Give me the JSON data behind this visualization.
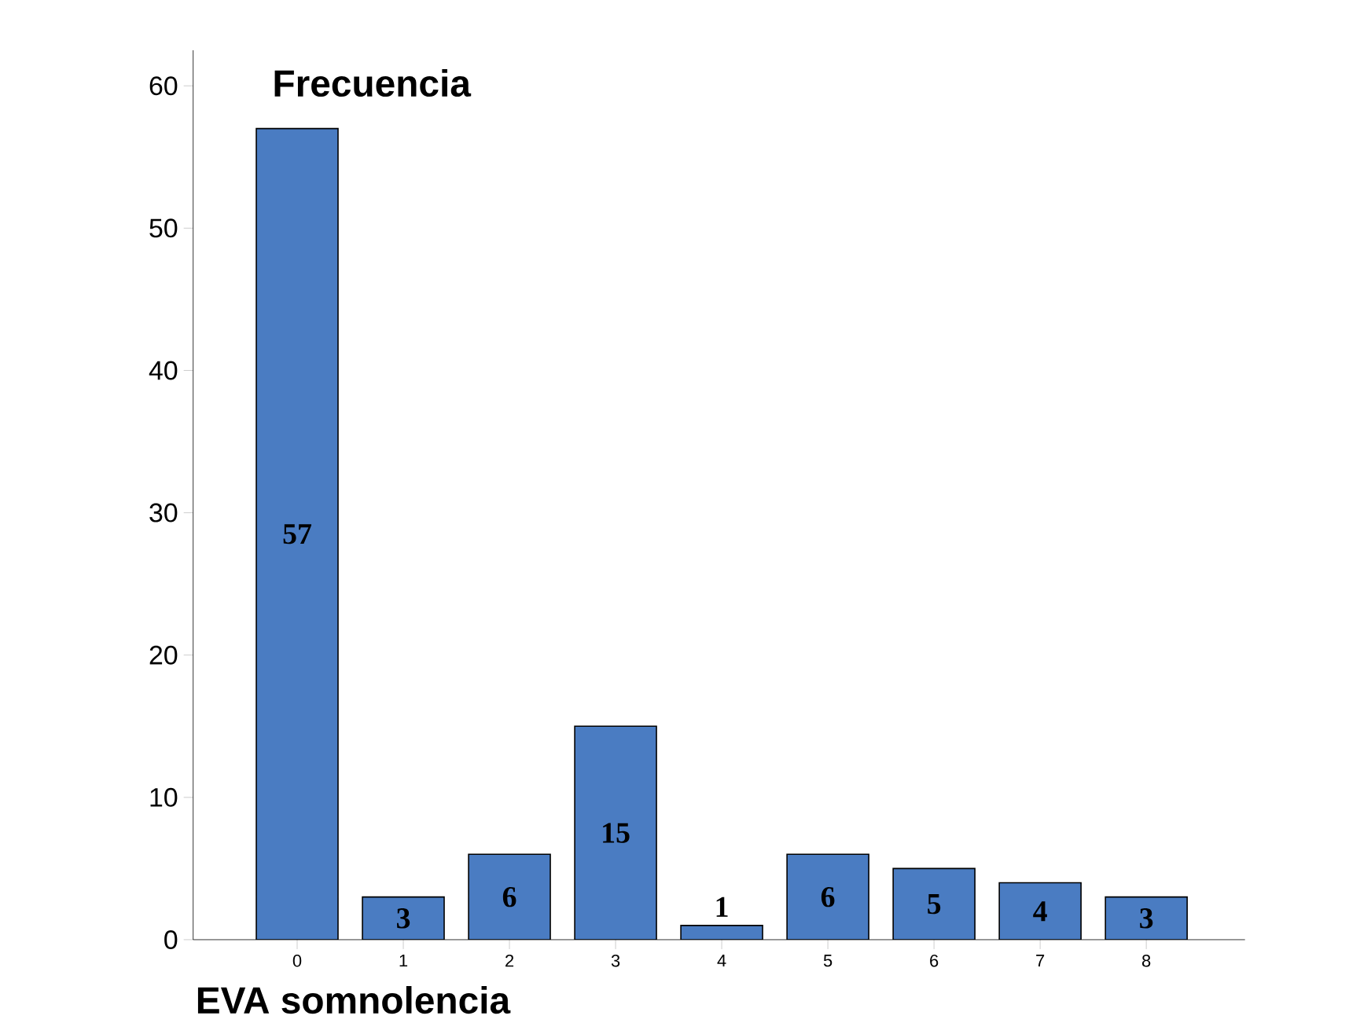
{
  "chart_data": {
    "type": "bar",
    "ylabel": "Frecuencia",
    "xlabel": "EVA somnolencia",
    "categories": [
      "0",
      "1",
      "2",
      "3",
      "4",
      "5",
      "6",
      "7",
      "8"
    ],
    "values": [
      57,
      3,
      6,
      15,
      1,
      6,
      5,
      4,
      3
    ],
    "color": "#4a7cc2",
    "ylim": [
      0,
      62.5
    ],
    "yticks": [
      0,
      10,
      20,
      30,
      40,
      50,
      60
    ],
    "data_labels": true,
    "grid": false
  }
}
